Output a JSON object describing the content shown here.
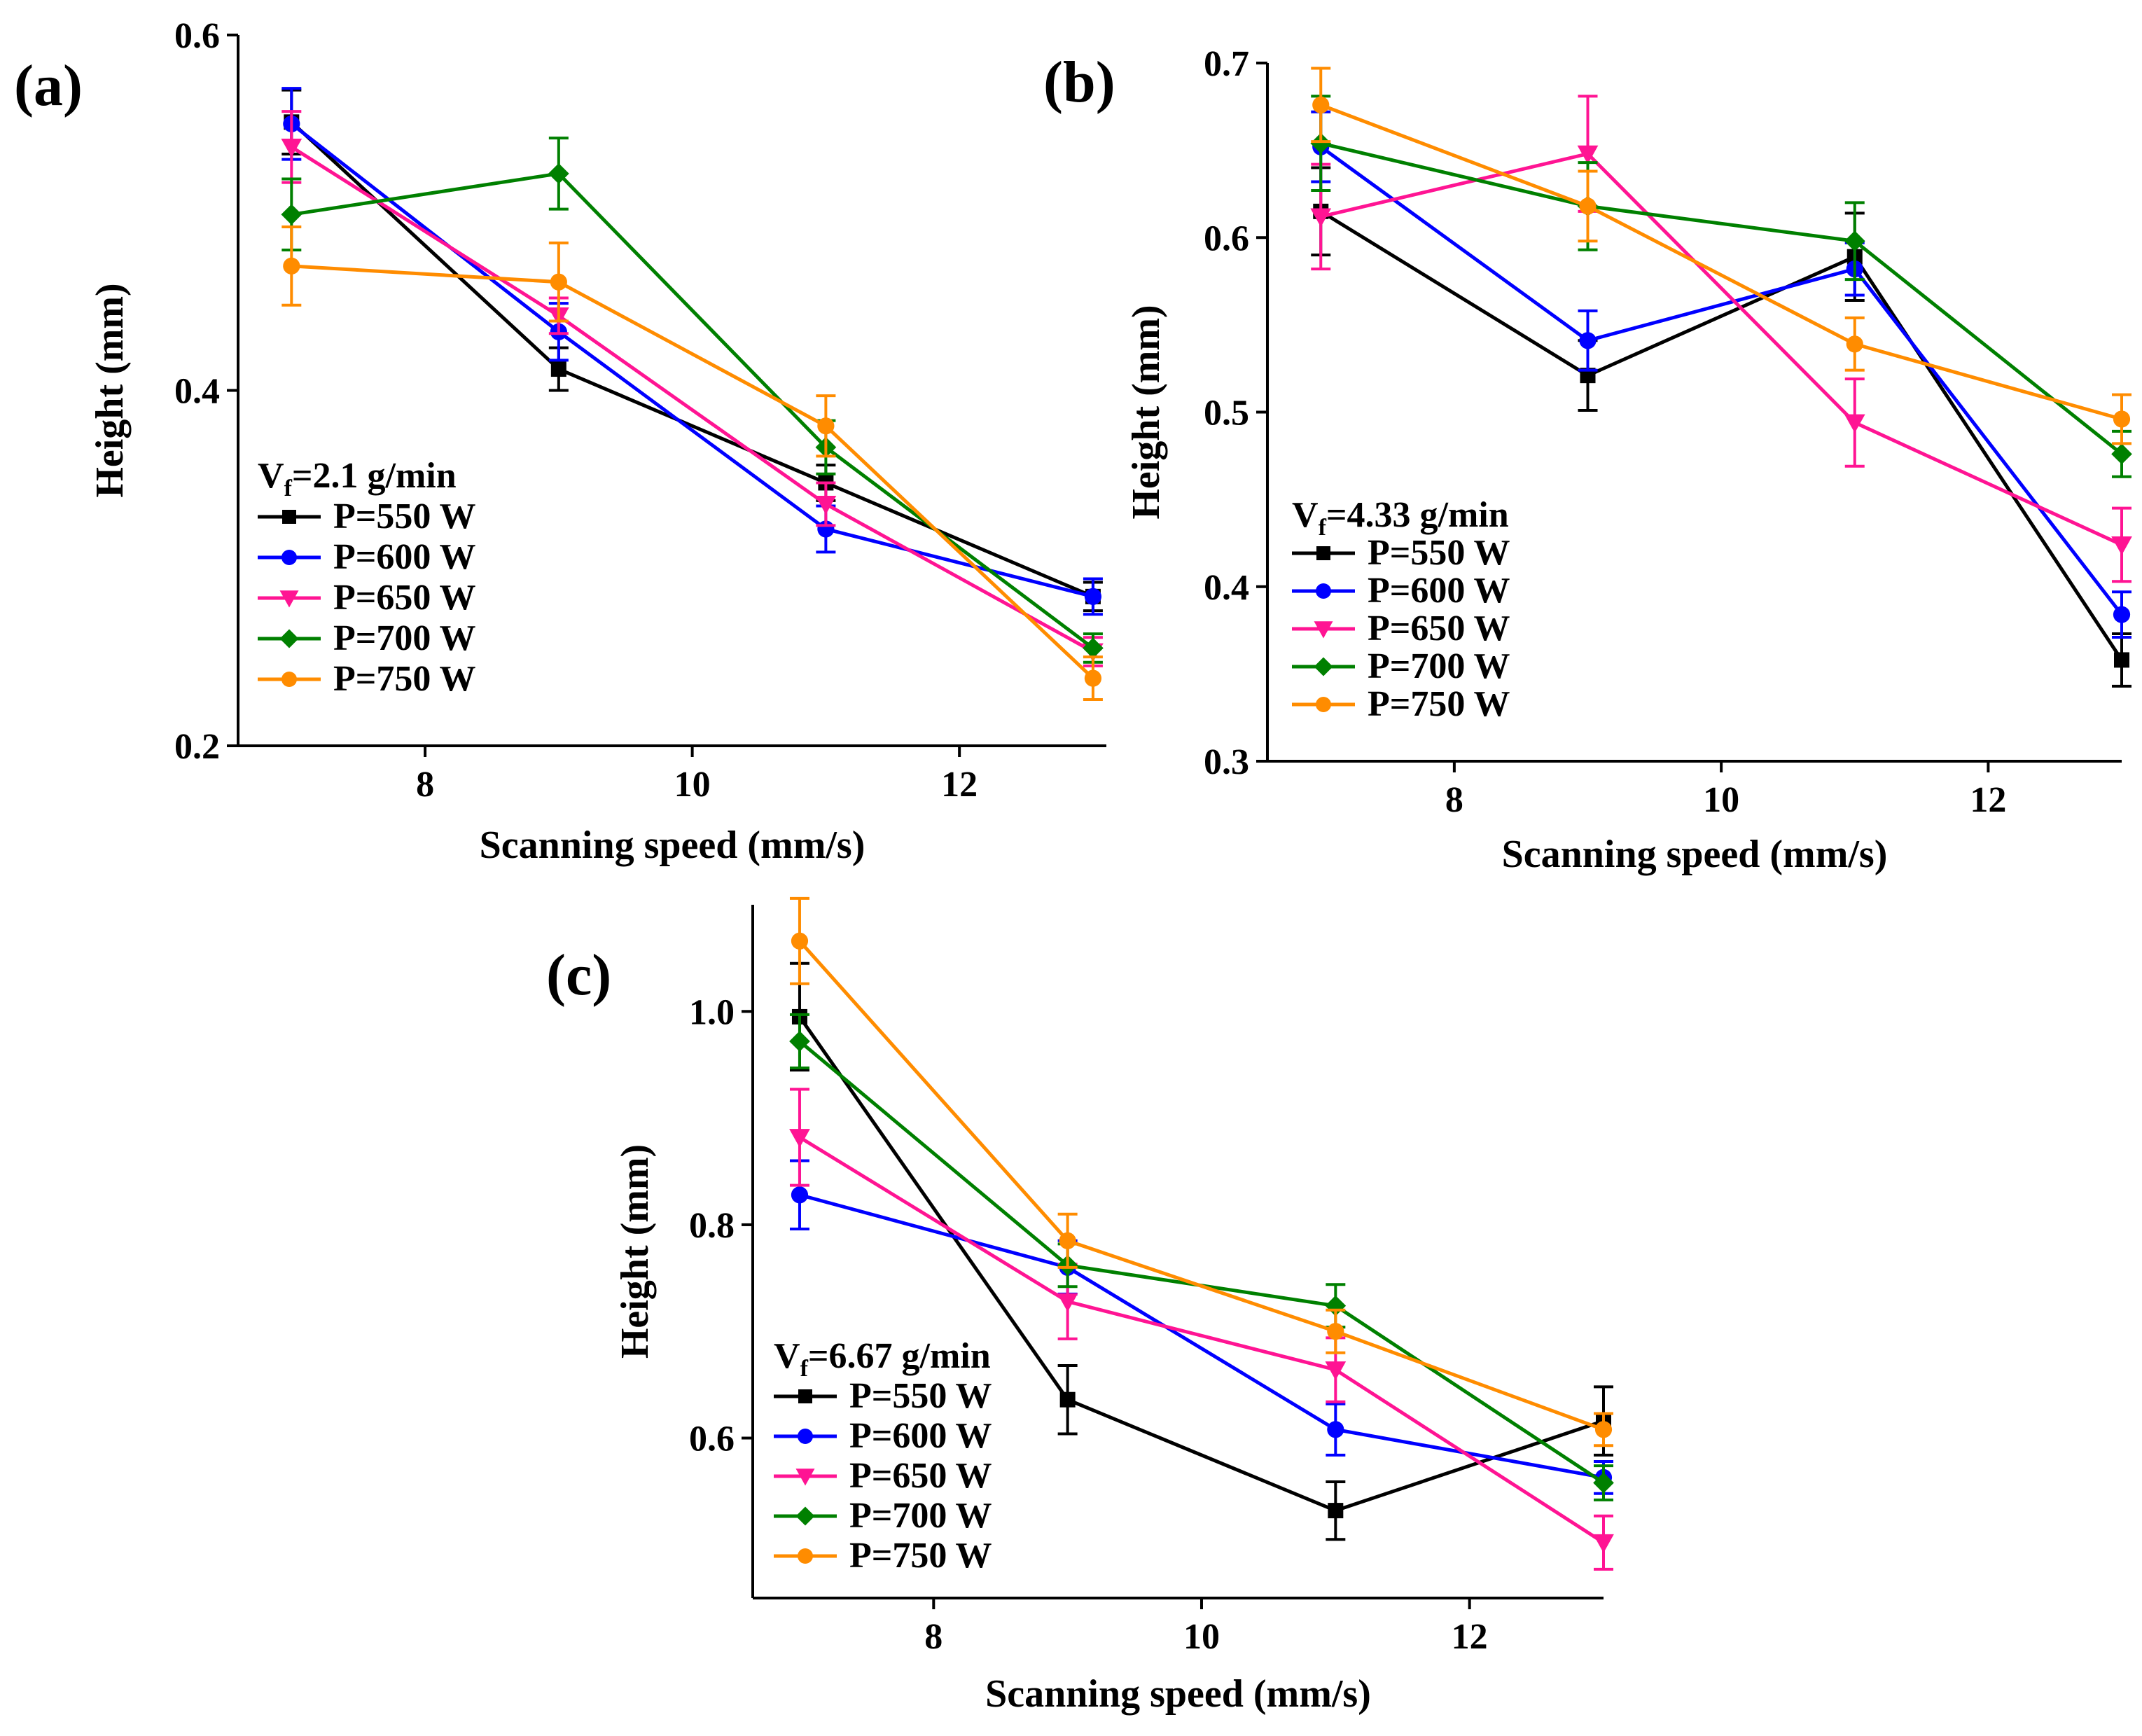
{
  "colors": {
    "P550": "#000000",
    "P600": "#0000ff",
    "P650": "#ff1493",
    "P700": "#008000",
    "P750": "#ff8c00"
  },
  "chart_data": [
    {
      "panel_label": "(a)",
      "type": "line",
      "xlabel": "Scanning speed (mm/s)",
      "ylabel": "Height (mm)",
      "xlim": [
        6.6,
        13.1
      ],
      "ylim": [
        0.2,
        0.6
      ],
      "xticks": [
        8,
        10,
        12
      ],
      "xtick_labels": [
        "8",
        "10",
        "12"
      ],
      "yticks": [
        0.2,
        0.4,
        0.6
      ],
      "ytick_labels": [
        "0.2",
        "0.4",
        "0.6"
      ],
      "legend": {
        "title_main": "V",
        "title_sub": "f",
        "title_rest": "=2.1 g/min",
        "position": "lower-left"
      },
      "x": [
        7,
        9,
        11,
        13
      ],
      "series": [
        {
          "name": "P=550 W",
          "color_key": "P550",
          "marker": "square",
          "values": [
            0.551,
            0.412,
            0.348,
            0.284
          ],
          "errors": [
            0.018,
            0.012,
            0.01,
            0.008
          ]
        },
        {
          "name": "P=600 W",
          "color_key": "P600",
          "marker": "circle",
          "values": [
            0.55,
            0.433,
            0.322,
            0.284
          ],
          "errors": [
            0.02,
            0.016,
            0.013,
            0.01
          ]
        },
        {
          "name": "P=650 W",
          "color_key": "P650",
          "marker": "triangle-down",
          "values": [
            0.537,
            0.442,
            0.336,
            0.253
          ],
          "errors": [
            0.02,
            0.01,
            0.012,
            0.008
          ]
        },
        {
          "name": "P=700 W",
          "color_key": "P700",
          "marker": "diamond",
          "values": [
            0.499,
            0.522,
            0.368,
            0.255
          ],
          "errors": [
            0.02,
            0.02,
            0.015,
            0.008
          ]
        },
        {
          "name": "P=750 W",
          "color_key": "P750",
          "marker": "circle",
          "values": [
            0.47,
            0.461,
            0.38,
            0.238
          ],
          "errors": [
            0.022,
            0.022,
            0.017,
            0.012
          ]
        }
      ]
    },
    {
      "panel_label": "(b)",
      "type": "line",
      "xlabel": "Scanning speed (mm/s)",
      "ylabel": "Height (mm)",
      "xlim": [
        6.6,
        13.0
      ],
      "ylim": [
        0.3,
        0.7
      ],
      "xticks": [
        8,
        10,
        12
      ],
      "xtick_labels": [
        "8",
        "10",
        "12"
      ],
      "yticks": [
        0.3,
        0.4,
        0.5,
        0.6,
        0.7
      ],
      "ytick_labels": [
        "0.3",
        "0.4",
        "0.5",
        "0.6",
        "0.7"
      ],
      "legend": {
        "title_main": "V",
        "title_sub": "f",
        "title_rest": "=4.33 g/min",
        "position": "lower-left"
      },
      "x": [
        7,
        9,
        11,
        13
      ],
      "series": [
        {
          "name": "P=550 W",
          "color_key": "P550",
          "marker": "square",
          "values": [
            0.615,
            0.521,
            0.589,
            0.358
          ],
          "errors": [
            0.025,
            0.02,
            0.025,
            0.015
          ]
        },
        {
          "name": "P=600 W",
          "color_key": "P600",
          "marker": "circle",
          "values": [
            0.652,
            0.541,
            0.582,
            0.384
          ],
          "errors": [
            0.02,
            0.017,
            0.015,
            0.013
          ]
        },
        {
          "name": "P=650 W",
          "color_key": "P650",
          "marker": "triangle-down",
          "values": [
            0.612,
            0.648,
            0.494,
            0.424
          ],
          "errors": [
            0.03,
            0.033,
            0.025,
            0.021
          ]
        },
        {
          "name": "P=700 W",
          "color_key": "P700",
          "marker": "diamond",
          "values": [
            0.654,
            0.618,
            0.598,
            0.476
          ],
          "errors": [
            0.027,
            0.025,
            0.022,
            0.013
          ]
        },
        {
          "name": "P=750 W",
          "color_key": "P750",
          "marker": "circle",
          "values": [
            0.676,
            0.618,
            0.539,
            0.496
          ],
          "errors": [
            0.021,
            0.02,
            0.015,
            0.014
          ]
        }
      ]
    },
    {
      "panel_label": "(c)",
      "type": "line",
      "xlabel": "Scanning speed (mm/s)",
      "ylabel": "Height (mm)",
      "xlim": [
        6.65,
        13.0
      ],
      "ylim": [
        0.45,
        1.1
      ],
      "xticks": [
        8,
        10,
        12
      ],
      "xtick_labels": [
        "8",
        "10",
        "12"
      ],
      "yticks": [
        0.6,
        0.8,
        1.0
      ],
      "ytick_labels": [
        "0.6",
        "0.8",
        "1.0"
      ],
      "legend": {
        "title_main": "V",
        "title_sub": "f",
        "title_rest": "=6.67 g/min",
        "position": "lower-left"
      },
      "x": [
        7,
        9,
        11,
        13
      ],
      "series": [
        {
          "name": "P=550 W",
          "color_key": "P550",
          "marker": "square",
          "values": [
            0.995,
            0.636,
            0.532,
            0.616
          ],
          "errors": [
            0.05,
            0.032,
            0.027,
            0.032
          ]
        },
        {
          "name": "P=600 W",
          "color_key": "P600",
          "marker": "circle",
          "values": [
            0.828,
            0.76,
            0.608,
            0.563
          ],
          "errors": [
            0.032,
            0.025,
            0.024,
            0.015
          ]
        },
        {
          "name": "P=650 W",
          "color_key": "P650",
          "marker": "triangle-down",
          "values": [
            0.882,
            0.728,
            0.664,
            0.502
          ],
          "errors": [
            0.045,
            0.035,
            0.03,
            0.025
          ]
        },
        {
          "name": "P=700 W",
          "color_key": "P700",
          "marker": "diamond",
          "values": [
            0.972,
            0.762,
            0.724,
            0.558
          ],
          "errors": [
            0.025,
            0.02,
            0.02,
            0.016
          ]
        },
        {
          "name": "P=750 W",
          "color_key": "P750",
          "marker": "circle",
          "values": [
            1.066,
            0.785,
            0.7,
            0.608
          ],
          "errors": [
            0.04,
            0.025,
            0.02,
            0.015
          ]
        }
      ]
    }
  ]
}
